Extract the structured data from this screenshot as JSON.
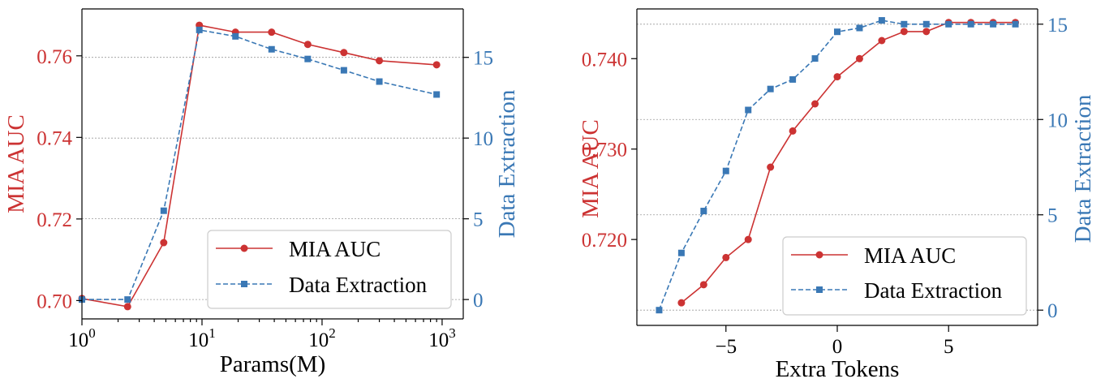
{
  "colors": {
    "mia": "#cc3333",
    "data": "#3a78b5",
    "grid": "#9a9a9a"
  },
  "chart_data": [
    {
      "type": "line",
      "xlabel": "Params(M)",
      "x_scale": "log",
      "xlim": [
        1,
        1500
      ],
      "x_ticks": [
        1,
        10,
        100,
        1000
      ],
      "x_tick_labels": [
        [
          "10",
          "0"
        ],
        [
          "10",
          "1"
        ],
        [
          "10",
          "2"
        ],
        [
          "10",
          "3"
        ]
      ],
      "ylabel_left": "MIA AUC",
      "ylim_left": [
        0.6955,
        0.7715
      ],
      "y_ticks_left": [
        "0.70",
        "0.72",
        "0.74",
        "0.76"
      ],
      "ylabel_right": "Data Extraction",
      "ylim_right": [
        -1.2,
        18
      ],
      "y_ticks_right": [
        "0",
        "5",
        "10",
        "15"
      ],
      "grid": "horizontal, right axis",
      "legend_position": "lower-right",
      "series": [
        {
          "name": "MIA AUC",
          "axis": "left",
          "x": [
            1,
            2.4,
            4.8,
            9.5,
            19,
            38,
            76,
            152,
            300,
            900
          ],
          "y": [
            0.7005,
            0.6985,
            0.7142,
            0.7675,
            0.7658,
            0.7658,
            0.7628,
            0.7608,
            0.7588,
            0.7578
          ]
        },
        {
          "name": "Data Extraction",
          "axis": "right",
          "x": [
            1,
            2.4,
            4.8,
            9.5,
            19,
            38,
            76,
            152,
            300,
            900
          ],
          "y": [
            0,
            0,
            5.5,
            16.7,
            16.3,
            15.5,
            14.9,
            14.2,
            13.5,
            12.7
          ]
        }
      ]
    },
    {
      "type": "line",
      "xlabel": "Extra Tokens",
      "x_scale": "linear",
      "xlim": [
        -9,
        9
      ],
      "x_ticks": [
        "-5",
        "0",
        "5"
      ],
      "x_tick_values": [
        -5,
        0,
        5
      ],
      "ylabel_left": "MIA AUC",
      "ylim_left": [
        0.7105,
        0.7455
      ],
      "y_ticks_left": [
        "0.720",
        "0.730",
        "0.740"
      ],
      "ylabel_right": "Data Extraction",
      "ylim_right": [
        -0.8,
        15.8
      ],
      "y_ticks_right": [
        "0",
        "5",
        "10",
        "15"
      ],
      "grid": "horizontal, right axis",
      "legend_position": "lower-right",
      "series": [
        {
          "name": "MIA AUC",
          "axis": "left",
          "x": [
            -7,
            -6,
            -5,
            -4,
            -3,
            -2,
            -1,
            0,
            1,
            2,
            3,
            4,
            5,
            6,
            7,
            8
          ],
          "y": [
            0.713,
            0.715,
            0.718,
            0.72,
            0.728,
            0.732,
            0.735,
            0.738,
            0.74,
            0.742,
            0.743,
            0.743,
            0.744,
            0.744,
            0.744,
            0.744
          ]
        },
        {
          "name": "Data Extraction",
          "axis": "right",
          "x": [
            -8,
            -7,
            -6,
            -5,
            -4,
            -3,
            -2,
            -1,
            0,
            1,
            2,
            3,
            4,
            5,
            6,
            7,
            8
          ],
          "y": [
            0,
            3,
            5.2,
            7.3,
            10.5,
            11.6,
            12.1,
            13.2,
            14.6,
            14.8,
            15.2,
            15,
            15,
            15,
            15,
            15,
            15
          ]
        }
      ]
    }
  ]
}
